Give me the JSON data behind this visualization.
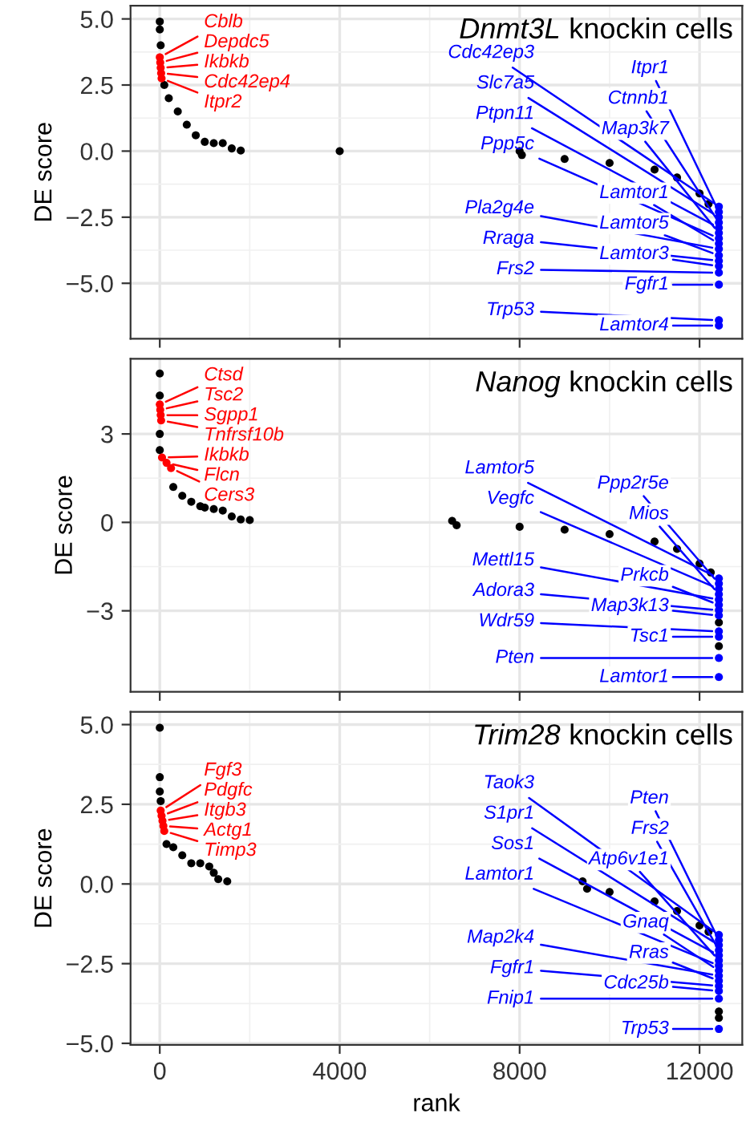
{
  "chart_data": [
    {
      "type": "scatter",
      "title": "Dnmt3L knockin cells",
      "ylabel": "DE score",
      "xlim": [
        -650,
        12950
      ],
      "xticks": [
        0,
        4000,
        8000,
        12000
      ],
      "ylim": [
        -7.1,
        5.5
      ],
      "yticks": [
        {
          "value": 5.0,
          "label": "5.0"
        },
        2.5,
        {
          "value": 0.0,
          "label": "0.0"
        },
        {
          "value": -2.5,
          "label": "−2.5"
        },
        {
          "value": -5.0,
          "label": "−5.0"
        }
      ],
      "tick_labels": "y",
      "grid": true,
      "marker": "circle",
      "series": [
        {
          "color": "#000000",
          "x": [
            0,
            0,
            20,
            100,
            200,
            400,
            600,
            800,
            1000,
            1200,
            1400,
            1600,
            1800,
            4000,
            8000,
            8050,
            9000,
            10000,
            11000,
            11500,
            12000,
            12200
          ],
          "values": [
            4.9,
            4.6,
            4.0,
            2.5,
            2.0,
            1.5,
            1.0,
            0.6,
            0.35,
            0.3,
            0.3,
            0.1,
            0.02,
            0.0,
            0.0,
            -0.15,
            -0.3,
            -0.45,
            -0.7,
            -1.0,
            -1.6,
            -2.0
          ]
        },
        {
          "color": "#ff0000",
          "x": [
            0,
            10,
            20,
            30,
            40
          ],
          "values": [
            3.55,
            3.35,
            3.15,
            2.95,
            2.75
          ]
        },
        {
          "color": "#0000ff",
          "x": [
            12430,
            12430,
            12430,
            12430,
            12430,
            12430,
            12430,
            12430,
            12430,
            12430,
            12430,
            12430,
            12430,
            12430,
            12430,
            12430
          ],
          "values": [
            -2.1,
            -2.3,
            -2.5,
            -2.7,
            -2.9,
            -3.1,
            -3.3,
            -3.5,
            -3.7,
            -3.95,
            -4.15,
            -4.35,
            -4.6,
            -5.05,
            -6.4,
            -6.6
          ]
        }
      ],
      "annotations": [
        {
          "text": "Cblb",
          "x": 0,
          "y": 3.55
        },
        {
          "text": "Depdc5",
          "x": 10,
          "y": 3.35
        },
        {
          "text": "Ikbkb",
          "x": 20,
          "y": 3.15
        },
        {
          "text": "Cdc42ep4",
          "x": 30,
          "y": 2.95
        },
        {
          "text": "Itpr2",
          "x": 40,
          "y": 2.75
        },
        {
          "text": "Cdc42ep3",
          "x": 12430,
          "y": -2.1
        },
        {
          "text": "Itpr1",
          "x": 12430,
          "y": -2.3
        },
        {
          "text": "Slc7a5",
          "x": 12430,
          "y": -2.5
        },
        {
          "text": "Ctnnb1",
          "x": 12430,
          "y": -2.7
        },
        {
          "text": "Ptpn11",
          "x": 12430,
          "y": -2.9
        },
        {
          "text": "Map3k7",
          "x": 12430,
          "y": -3.1
        },
        {
          "text": "Ppp5c",
          "x": 12430,
          "y": -3.3
        },
        {
          "text": "Lamtor1",
          "x": 12430,
          "y": -3.5
        },
        {
          "text": "Pla2g4e",
          "x": 12430,
          "y": -3.7
        },
        {
          "text": "Lamtor5",
          "x": 12430,
          "y": -3.95
        },
        {
          "text": "Rraga",
          "x": 12430,
          "y": -4.15
        },
        {
          "text": "Lamtor3",
          "x": 12430,
          "y": -4.35
        },
        {
          "text": "Frs2",
          "x": 12430,
          "y": -4.6
        },
        {
          "text": "Fgfr1",
          "x": 12430,
          "y": -5.05
        },
        {
          "text": "Trp53",
          "x": 12430,
          "y": -6.4
        },
        {
          "text": "Lamtor4",
          "x": 12430,
          "y": -6.6
        }
      ]
    },
    {
      "type": "scatter",
      "title": "Nanog knockin cells",
      "ylabel": "DE score",
      "xlim": [
        -650,
        12950
      ],
      "xticks": [
        0,
        4000,
        8000,
        12000
      ],
      "ylim": [
        -5.75,
        5.55
      ],
      "yticks": [
        3,
        0,
        {
          "value": -3,
          "label": "−3"
        }
      ],
      "tick_labels": "y",
      "grid": true,
      "marker": "circle",
      "series": [
        {
          "color": "#000000",
          "x": [
            0,
            0,
            0,
            0,
            300,
            500,
            700,
            900,
            1000,
            1200,
            1400,
            1600,
            1800,
            2000,
            6500,
            6600,
            8000,
            9000,
            10000,
            11000,
            11500,
            12000,
            12250,
            12430,
            12430
          ],
          "values": [
            5.05,
            4.3,
            3.0,
            2.45,
            1.2,
            0.9,
            0.7,
            0.55,
            0.5,
            0.45,
            0.4,
            0.2,
            0.1,
            0.08,
            0.05,
            -0.1,
            -0.15,
            -0.25,
            -0.4,
            -0.65,
            -0.9,
            -1.4,
            -1.7,
            -3.4,
            -4.2
          ]
        },
        {
          "color": "#ff0000",
          "x": [
            0,
            10,
            20,
            30,
            50,
            150,
            250
          ],
          "values": [
            4.0,
            3.82,
            3.64,
            3.46,
            2.2,
            2.02,
            1.84
          ]
        },
        {
          "color": "#0000ff",
          "x": [
            12430,
            12430,
            12430,
            12430,
            12430,
            12430,
            12430,
            12430,
            12430,
            12430,
            12430,
            12430
          ],
          "values": [
            -1.9,
            -2.08,
            -2.26,
            -2.44,
            -2.62,
            -2.8,
            -2.98,
            -3.16,
            -3.7,
            -3.88,
            -4.6,
            -5.25
          ]
        }
      ],
      "annotations": [
        {
          "text": "Ctsd",
          "x": 0,
          "y": 4.0
        },
        {
          "text": "Tsc2",
          "x": 10,
          "y": 3.82
        },
        {
          "text": "Sgpp1",
          "x": 20,
          "y": 3.64
        },
        {
          "text": "Tnfrsf10b",
          "x": 30,
          "y": 3.46
        },
        {
          "text": "Ikbkb",
          "x": 50,
          "y": 2.2
        },
        {
          "text": "Flcn",
          "x": 150,
          "y": 2.02
        },
        {
          "text": "Cers3",
          "x": 250,
          "y": 1.84
        },
        {
          "text": "Lamtor5",
          "x": 12430,
          "y": -1.9
        },
        {
          "text": "Ppp2r5e",
          "x": 12430,
          "y": -2.08
        },
        {
          "text": "Vegfc",
          "x": 12430,
          "y": -2.26
        },
        {
          "text": "Mios",
          "x": 12430,
          "y": -2.44
        },
        {
          "text": "Mettl15",
          "x": 12430,
          "y": -2.62
        },
        {
          "text": "Prkcb",
          "x": 12430,
          "y": -2.8
        },
        {
          "text": "Adora3",
          "x": 12430,
          "y": -2.98
        },
        {
          "text": "Map3k13",
          "x": 12430,
          "y": -3.16
        },
        {
          "text": "Wdr59",
          "x": 12430,
          "y": -3.7
        },
        {
          "text": "Tsc1",
          "x": 12430,
          "y": -3.88
        },
        {
          "text": "Pten",
          "x": 12430,
          "y": -4.6
        },
        {
          "text": "Lamtor1",
          "x": 12430,
          "y": -5.25
        }
      ]
    },
    {
      "type": "scatter",
      "title": "Trim28 knockin cells",
      "xlabel": "rank",
      "ylabel": "DE score",
      "xlim": [
        -650,
        12950
      ],
      "xticks": [
        0,
        4000,
        8000,
        12000
      ],
      "ylim": [
        -5.05,
        5.4
      ],
      "yticks": [
        {
          "value": 5.0,
          "label": "5.0"
        },
        2.5,
        {
          "value": 0.0,
          "label": "0.0"
        },
        {
          "value": -2.5,
          "label": "−2.5"
        },
        {
          "value": -5.0,
          "label": "−5.0"
        }
      ],
      "grid": true,
      "marker": "circle",
      "series": [
        {
          "color": "#000000",
          "x": [
            0,
            0,
            0,
            20,
            150,
            300,
            500,
            700,
            900,
            1100,
            1200,
            1300,
            1500,
            9400,
            9500,
            10000,
            11000,
            11500,
            12000,
            12200,
            12430,
            12430
          ],
          "values": [
            4.9,
            3.35,
            2.9,
            2.6,
            1.25,
            1.15,
            0.9,
            0.65,
            0.65,
            0.55,
            0.35,
            0.15,
            0.08,
            0.08,
            -0.15,
            -0.25,
            -0.55,
            -0.85,
            -1.3,
            -1.5,
            -4.0,
            -4.2
          ]
        },
        {
          "color": "#ff0000",
          "x": [
            20,
            40,
            60,
            80,
            100
          ],
          "values": [
            2.3,
            2.14,
            1.98,
            1.82,
            1.66
          ]
        },
        {
          "color": "#0000ff",
          "x": [
            12430,
            12430,
            12430,
            12430,
            12430,
            12430,
            12430,
            12430,
            12430,
            12430,
            12430,
            12430,
            12430,
            12430
          ],
          "values": [
            -1.6,
            -1.76,
            -1.92,
            -2.08,
            -2.24,
            -2.4,
            -2.56,
            -2.72,
            -2.88,
            -3.04,
            -3.2,
            -3.36,
            -3.6,
            -4.55
          ]
        }
      ],
      "annotations": [
        {
          "text": "Fgf3",
          "x": 20,
          "y": 2.3
        },
        {
          "text": "Pdgfc",
          "x": 40,
          "y": 2.14
        },
        {
          "text": "Itgb3",
          "x": 60,
          "y": 1.98
        },
        {
          "text": "Actg1",
          "x": 80,
          "y": 1.82
        },
        {
          "text": "Timp3",
          "x": 100,
          "y": 1.66
        },
        {
          "text": "Taok3",
          "x": 12430,
          "y": -1.6
        },
        {
          "text": "Pten",
          "x": 12430,
          "y": -1.76
        },
        {
          "text": "S1pr1",
          "x": 12430,
          "y": -1.92
        },
        {
          "text": "Frs2",
          "x": 12430,
          "y": -2.08
        },
        {
          "text": "Sos1",
          "x": 12430,
          "y": -2.24
        },
        {
          "text": "Atp6v1e1",
          "x": 12430,
          "y": -2.4
        },
        {
          "text": "Lamtor1",
          "x": 12430,
          "y": -2.56
        },
        {
          "text": "Gnaq",
          "x": 12430,
          "y": -2.72
        },
        {
          "text": "Map2k4",
          "x": 12430,
          "y": -2.88
        },
        {
          "text": "Rras",
          "x": 12430,
          "y": -3.04
        },
        {
          "text": "Fgfr1",
          "x": 12430,
          "y": -3.2
        },
        {
          "text": "Cdc25b",
          "x": 12430,
          "y": -3.36
        },
        {
          "text": "Fnip1",
          "x": 12430,
          "y": -3.6
        },
        {
          "text": "Trp53",
          "x": 12430,
          "y": -4.55
        }
      ]
    }
  ]
}
